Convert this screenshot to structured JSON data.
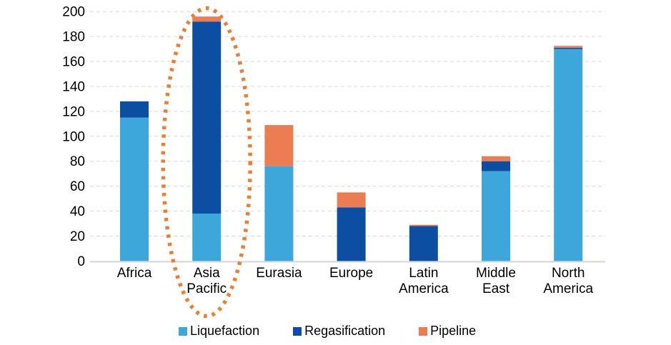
{
  "chart_data": {
    "type": "bar",
    "stacked": true,
    "title": "",
    "categories": [
      "Africa",
      "Asia Pacific",
      "Eurasia",
      "Europe",
      "Latin America",
      "Middle East",
      "North America"
    ],
    "series": [
      {
        "name": "Liquefaction",
        "color": "#3DA7DB",
        "values": [
          115,
          38,
          76,
          0,
          0,
          72,
          170
        ]
      },
      {
        "name": "Regasification",
        "color": "#0B4EA2",
        "values": [
          13,
          154,
          0,
          43,
          28,
          8,
          1
        ]
      },
      {
        "name": "Pipeline",
        "color": "#EC7C52",
        "values": [
          0,
          4,
          33,
          12,
          1,
          4,
          1.5
        ]
      }
    ],
    "totals": [
      128,
      196,
      109,
      55,
      29,
      84,
      172.5
    ],
    "ylim": [
      0,
      200
    ],
    "yticks": [
      0,
      20,
      40,
      60,
      80,
      100,
      120,
      140,
      160,
      180,
      200
    ],
    "xlabel": "",
    "ylabel": "",
    "grid": true,
    "gridline_color": "#D9D9D9",
    "axis_line_color": "#D9D9D9",
    "text_color": "#000000",
    "legend_position": "bottom",
    "legend_labels": [
      "Liquefaction",
      "Regasification",
      "Pipeline"
    ],
    "annotation": {
      "shape": "dotted-ellipse",
      "highlights_category": "Asia Pacific",
      "color": "#EE7D2E"
    }
  }
}
